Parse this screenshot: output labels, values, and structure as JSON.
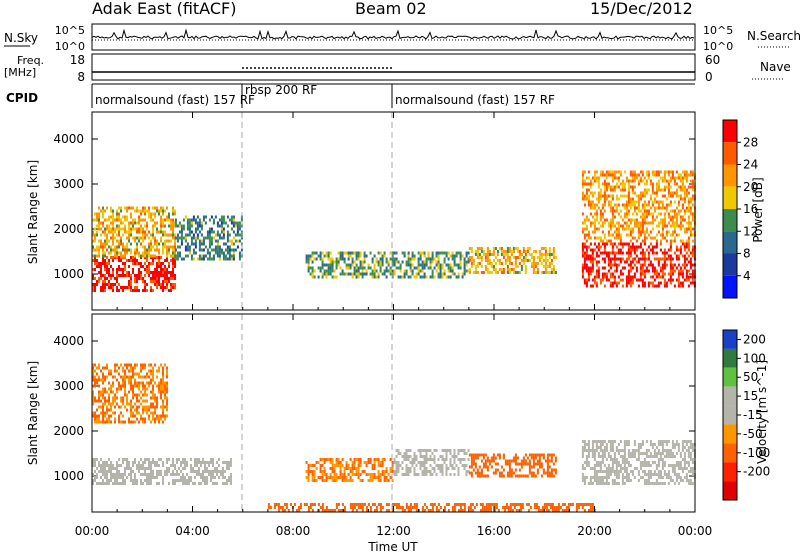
{
  "header": {
    "station": "Adak East (fitACF)",
    "beam": "Beam 02",
    "date": "15/Dec/2012"
  },
  "noise_panel": {
    "left_label": "N.Sky",
    "left_ticks": [
      "10^5",
      "10^0"
    ],
    "right_ticks": [
      "10^5",
      "10^0"
    ],
    "right_label": "N.Search"
  },
  "freq_panel": {
    "left_label_1": "Freq.",
    "left_label_2": "[MHz]",
    "left_ticks": [
      "18",
      "8"
    ],
    "right_ticks": [
      "60",
      "0"
    ],
    "right_label": "Nave"
  },
  "cpid": {
    "label": "CPID",
    "segments": [
      {
        "text": "normalsound (fast) 157 RF",
        "start_h": 0,
        "end_h": 6
      },
      {
        "text": "rbsp 200 RF",
        "start_h": 6,
        "end_h": 12
      },
      {
        "text": "normalsound (fast) 157 RF",
        "start_h": 12,
        "end_h": 24
      }
    ]
  },
  "axes": {
    "ylabel": "Slant Range [km]",
    "xlabel": "Time UT",
    "yticks": [
      "1000",
      "2000",
      "3000",
      "4000"
    ],
    "xticks": [
      "00:00",
      "04:00",
      "08:00",
      "12:00",
      "16:00",
      "20:00",
      "00:00"
    ]
  },
  "power_colorbar": {
    "title": "Power [dB]",
    "labels": [
      "28",
      "24",
      "20",
      "16",
      "12",
      "8",
      "4"
    ],
    "colors": [
      "#ff0000",
      "#ff5a00",
      "#ff9600",
      "#f0c800",
      "#3c8c50",
      "#2a6890",
      "#1a3aa0",
      "#0014ff"
    ]
  },
  "velocity_colorbar": {
    "title": "Velocity [m s^-1]",
    "labels": [
      "200",
      "100",
      "50",
      "15",
      "-15",
      "-50",
      "-100",
      "-200"
    ],
    "colors": [
      "#1a40c8",
      "#2f7a40",
      "#60c040",
      "#b4b4aa",
      "#b4b4aa",
      "#ff9600",
      "#ff6000",
      "#ff2000",
      "#e00000"
    ]
  },
  "chart_data": [
    {
      "type": "heatmap",
      "title": "Power [dB]",
      "xlabel": "Time UT",
      "ylabel": "Slant Range [km]",
      "xlim": [
        0,
        24
      ],
      "ylim": [
        200,
        4600
      ],
      "xticks": [
        "00:00",
        "04:00",
        "08:00",
        "12:00",
        "16:00",
        "20:00",
        "00:00"
      ],
      "yticks": [
        1000,
        2000,
        3000,
        4000
      ],
      "colorbar_labels": [
        28,
        24,
        20,
        16,
        12,
        8,
        4
      ],
      "echo_regions": [
        {
          "x": [
            0.0,
            3.3
          ],
          "y": [
            600,
            1400
          ],
          "value": 28
        },
        {
          "x": [
            0.0,
            3.3
          ],
          "y": [
            1400,
            2500
          ],
          "value": 18
        },
        {
          "x": [
            3.3,
            6.0
          ],
          "y": [
            1300,
            2300
          ],
          "value": 10
        },
        {
          "x": [
            8.5,
            15.0
          ],
          "y": [
            900,
            1500
          ],
          "value": 12
        },
        {
          "x": [
            15.0,
            18.5
          ],
          "y": [
            1000,
            1600
          ],
          "value": 18
        },
        {
          "x": [
            19.5,
            24.0
          ],
          "y": [
            700,
            1700
          ],
          "value": 28
        },
        {
          "x": [
            19.5,
            24.0
          ],
          "y": [
            1700,
            3300
          ],
          "value": 20
        }
      ]
    },
    {
      "type": "heatmap",
      "title": "Velocity [m s^-1]",
      "xlabel": "Time UT",
      "ylabel": "Slant Range [km]",
      "xlim": [
        0,
        24
      ],
      "ylim": [
        200,
        4600
      ],
      "xticks": [
        "00:00",
        "04:00",
        "08:00",
        "12:00",
        "16:00",
        "20:00",
        "00:00"
      ],
      "yticks": [
        1000,
        2000,
        3000,
        4000
      ],
      "colorbar_labels": [
        200,
        100,
        50,
        15,
        -15,
        -50,
        -100,
        -200
      ],
      "echo_regions": [
        {
          "x": [
            0.0,
            5.5
          ],
          "y": [
            800,
            1400
          ],
          "value": 0
        },
        {
          "x": [
            0.0,
            3.0
          ],
          "y": [
            2200,
            3500
          ],
          "value": -50
        },
        {
          "x": [
            8.5,
            12.0
          ],
          "y": [
            900,
            1400
          ],
          "value": -50
        },
        {
          "x": [
            12.0,
            15.0
          ],
          "y": [
            1000,
            1600
          ],
          "value": 40
        },
        {
          "x": [
            15.0,
            18.5
          ],
          "y": [
            1000,
            1500
          ],
          "value": -60
        },
        {
          "x": [
            19.5,
            24.0
          ],
          "y": [
            800,
            1800
          ],
          "value": 0
        },
        {
          "x": [
            7.0,
            20.0
          ],
          "y": [
            200,
            400
          ],
          "value": -80
        }
      ]
    }
  ]
}
